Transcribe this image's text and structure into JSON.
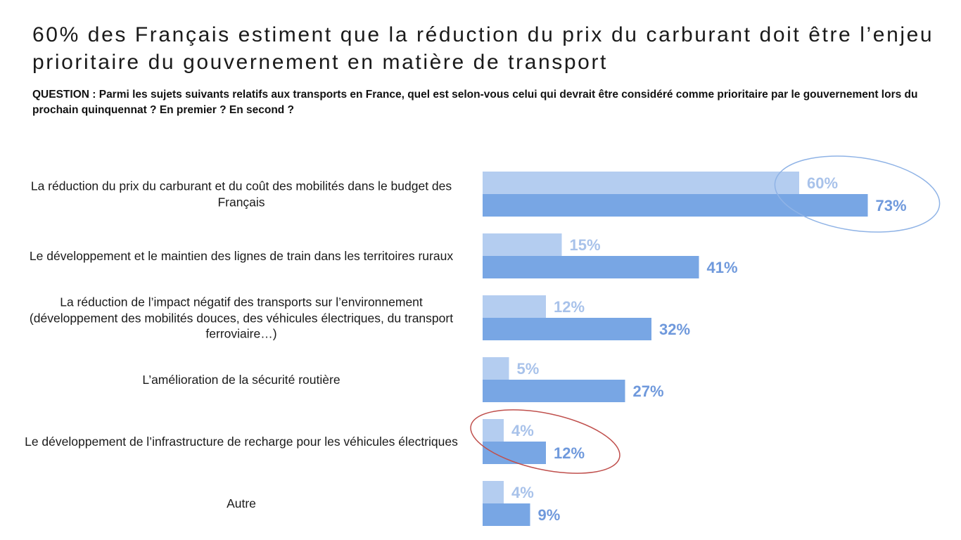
{
  "header": {
    "title": "60% des Français estiment que la réduction du prix du carburant doit être l’enjeu prioritaire du gouvernement en matière de transport",
    "question": "QUESTION : Parmi les sujets suivants relatifs aux transports en France, quel est selon-vous celui qui devrait être considéré comme prioritaire par le gouvernement lors du prochain quinquennat ? En premier ? En second ?"
  },
  "chart_data": {
    "type": "bar",
    "orientation": "horizontal",
    "categories": [
      "La réduction du prix du carburant et du coût des mobilités dans le budget des Français",
      "Le développement et le maintien des lignes de train dans les territoires ruraux",
      "La réduction de l’impact négatif des transports sur l’environnement (développement des mobilités douces, des véhicules électriques, du transport ferroviaire…)",
      "L’amélioration de la sécurité routière",
      "Le développement de l’infrastructure de recharge pour les véhicules électriques",
      "Autre"
    ],
    "series": [
      {
        "values": [
          60,
          15,
          12,
          5,
          4,
          4
        ],
        "labels": [
          "60%",
          "15%",
          "12%",
          "5%",
          "4%",
          "4%"
        ],
        "color": "#b4cdf0",
        "label_color": "#a8c2ea"
      },
      {
        "values": [
          73,
          41,
          32,
          27,
          12,
          9
        ],
        "labels": [
          "73%",
          "41%",
          "32%",
          "27%",
          "12%",
          "9%"
        ],
        "color": "#78a6e4",
        "label_color": "#6f99dc"
      }
    ],
    "xlim": [
      0,
      100
    ],
    "grid": false,
    "legend": "none",
    "highlights": [
      {
        "category_index": 0,
        "color": "#8fb3e6",
        "shape": "ellipse"
      },
      {
        "category_index": 4,
        "color": "#c0504d",
        "shape": "ellipse"
      }
    ]
  }
}
